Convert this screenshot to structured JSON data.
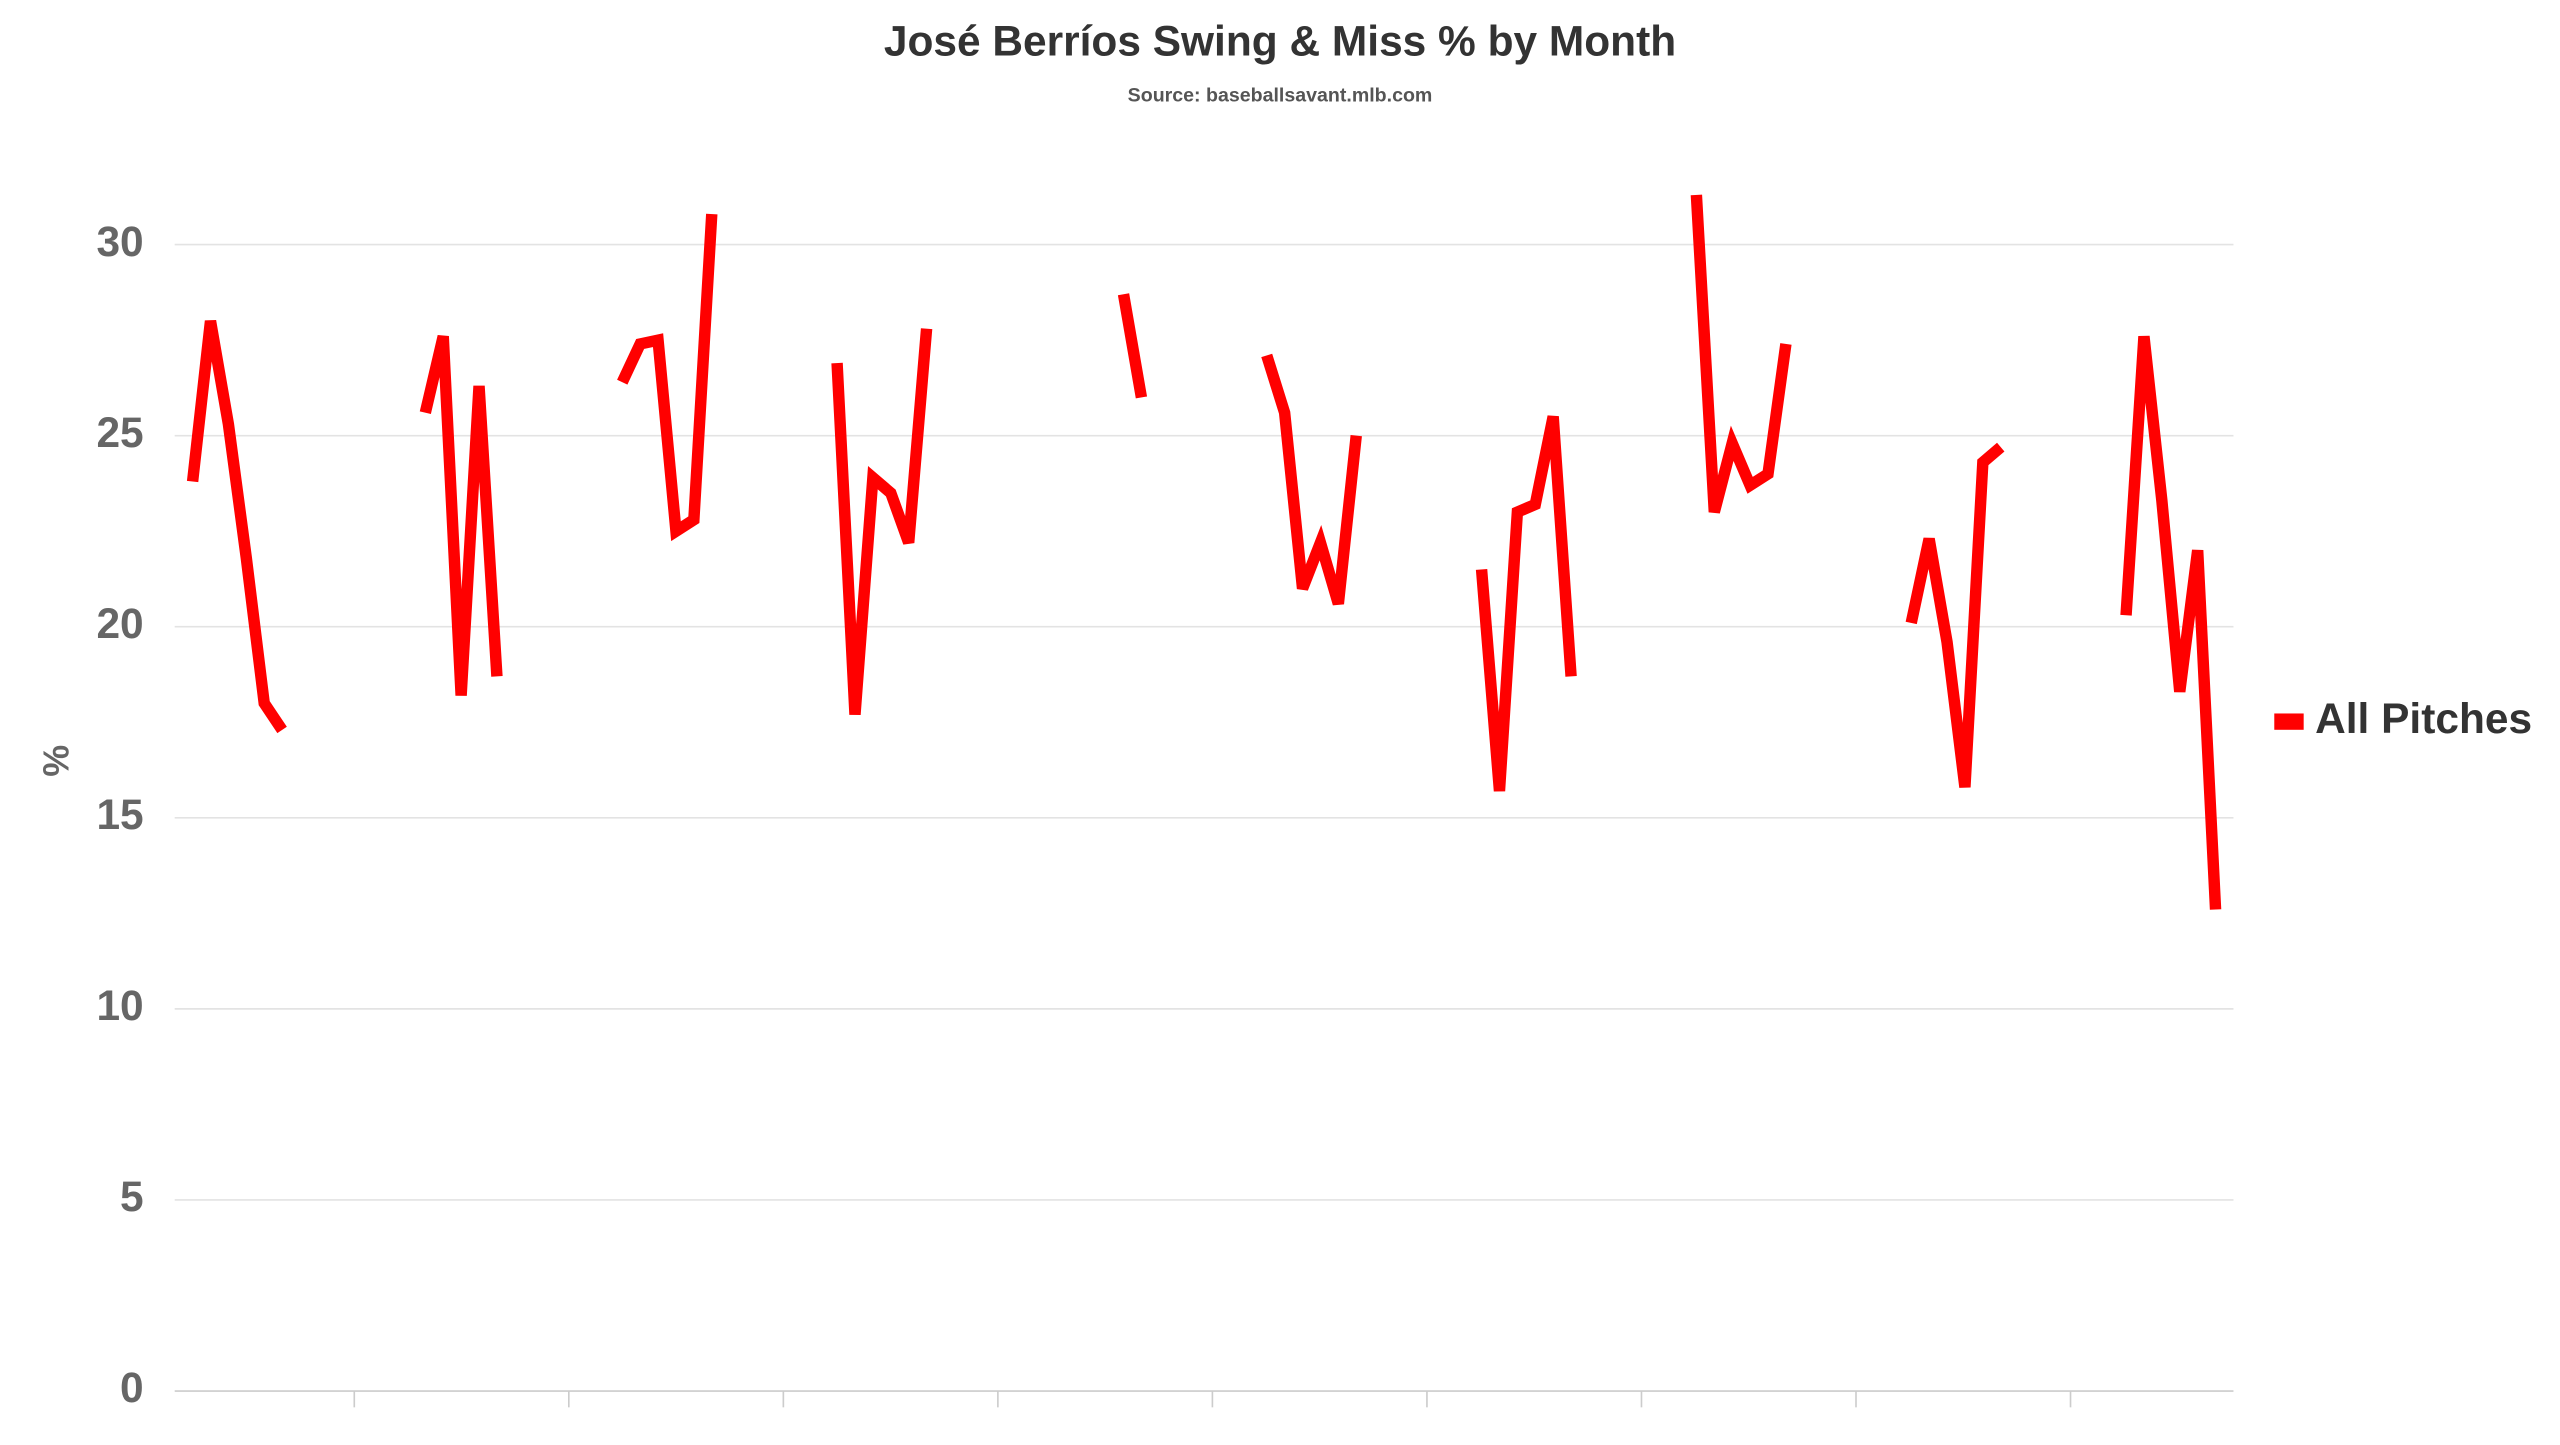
{
  "chart_data": {
    "type": "line",
    "title": "José Berríos Swing & Miss % by Month",
    "subtitle": "Source: baseballsavant.mlb.com",
    "y_label": "%",
    "series": [
      {
        "name": "All Pitches",
        "color": "#ff0000",
        "values": [
          null,
          23.8,
          28.0,
          25.3,
          21.8,
          18.0,
          17.3,
          null,
          null,
          null,
          null,
          null,
          null,
          null,
          25.6,
          27.6,
          18.2,
          26.3,
          18.7,
          null,
          null,
          null,
          null,
          null,
          null,
          26.4,
          27.4,
          27.5,
          22.5,
          22.8,
          30.8,
          null,
          null,
          null,
          null,
          null,
          null,
          26.9,
          17.7,
          23.9,
          23.5,
          22.2,
          27.8,
          null,
          null,
          null,
          null,
          null,
          null,
          null,
          null,
          null,
          null,
          28.7,
          26.0,
          null,
          null,
          null,
          null,
          null,
          null,
          27.1,
          25.6,
          21.0,
          22.2,
          20.6,
          25.0,
          null,
          null,
          null,
          null,
          null,
          null,
          21.5,
          15.7,
          23.0,
          23.2,
          25.5,
          18.7,
          null,
          null,
          null,
          null,
          null,
          null,
          31.3,
          23.0,
          24.8,
          23.7,
          24.0,
          27.4,
          null,
          null,
          null,
          null,
          null,
          null,
          20.1,
          22.3,
          19.6,
          15.8,
          24.3,
          24.7,
          null,
          null,
          null,
          null,
          null,
          null,
          20.3,
          27.6,
          23.3,
          18.3,
          22.0,
          12.6,
          null
        ]
      }
    ],
    "ylim": [
      0,
      32
    ],
    "yticks": [
      0,
      5,
      10,
      15,
      20,
      25,
      30
    ],
    "grid": true,
    "legend": "right"
  }
}
